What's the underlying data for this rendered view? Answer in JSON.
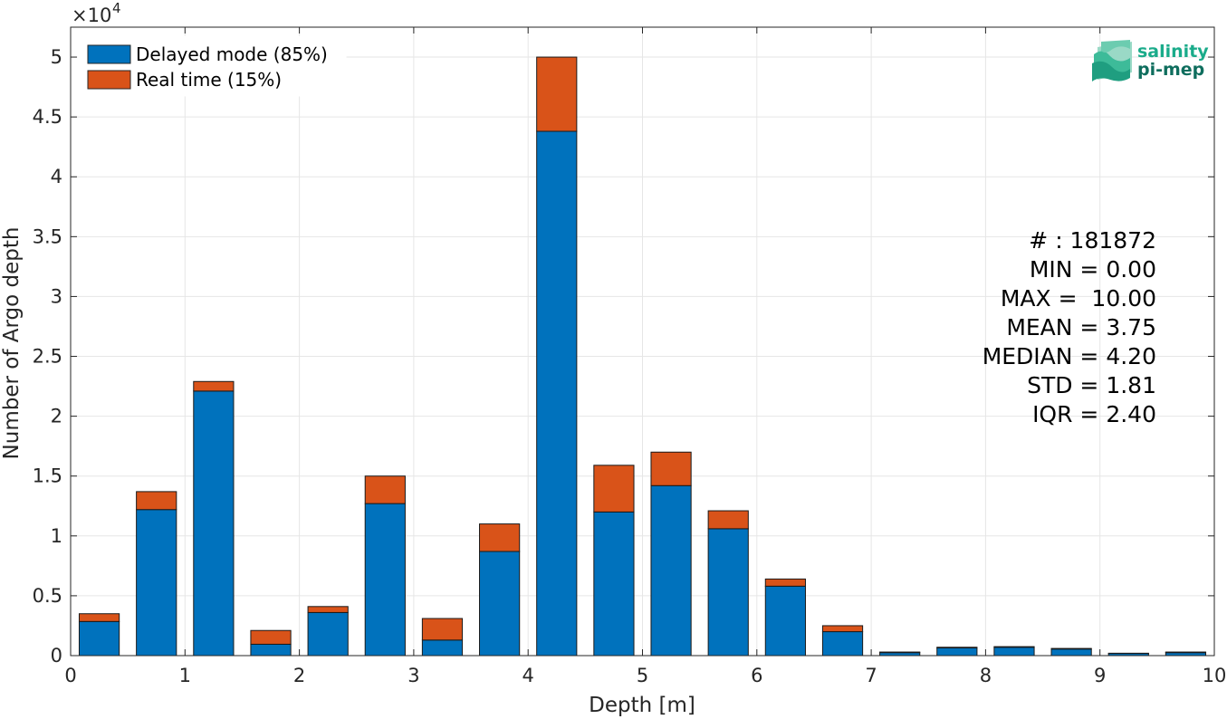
{
  "chart_data": {
    "type": "bar",
    "stacked": true,
    "xlabel": "Depth [m]",
    "ylabel": "Number of Argo depth",
    "y_multiplier": "×10",
    "y_multiplier_exp": "4",
    "xlim": [
      0,
      10
    ],
    "ylim": [
      0,
      52500
    ],
    "xticks": [
      0,
      1,
      2,
      3,
      4,
      5,
      6,
      7,
      8,
      9,
      10
    ],
    "xtick_labels": [
      "0",
      "1",
      "2",
      "3",
      "4",
      "5",
      "6",
      "7",
      "8",
      "9",
      "10"
    ],
    "yticks": [
      0,
      5000,
      10000,
      15000,
      20000,
      25000,
      30000,
      35000,
      40000,
      45000,
      50000
    ],
    "ytick_labels": [
      "0",
      "0.5",
      "1",
      "1.5",
      "2",
      "2.5",
      "3",
      "3.5",
      "4",
      "4.5",
      "5"
    ],
    "grid": true,
    "legend_position": "top-left",
    "bar_width": 0.35,
    "x": [
      0.25,
      0.75,
      1.25,
      1.75,
      2.25,
      2.75,
      3.25,
      3.75,
      4.25,
      4.75,
      5.25,
      5.75,
      6.25,
      6.75,
      7.25,
      7.75,
      8.25,
      8.75,
      9.25,
      9.75
    ],
    "series": [
      {
        "name": "Delayed mode (85%)",
        "color": "#0072BD",
        "values": [
          2850,
          12200,
          22100,
          950,
          3600,
          12700,
          1300,
          8700,
          43800,
          12000,
          14200,
          10600,
          5800,
          2000,
          250,
          650,
          700,
          550,
          180,
          250
        ]
      },
      {
        "name": "Real time (15%)",
        "color": "#D95319",
        "values": [
          650,
          1500,
          800,
          1150,
          500,
          2300,
          1800,
          2300,
          6200,
          3900,
          2800,
          1500,
          600,
          500,
          50,
          50,
          50,
          50,
          20,
          50
        ]
      }
    ],
    "stats": [
      "# : 181872",
      "MIN = 0.00",
      "MAX =  10.00",
      "MEAN = 3.75",
      "MEDIAN = 4.20",
      "STD = 1.81",
      "IQR = 2.40"
    ]
  },
  "logo": {
    "line1": "salinity",
    "line2": "pi-mep",
    "color1": "#1aab8a",
    "color2": "#0f6e5e"
  }
}
